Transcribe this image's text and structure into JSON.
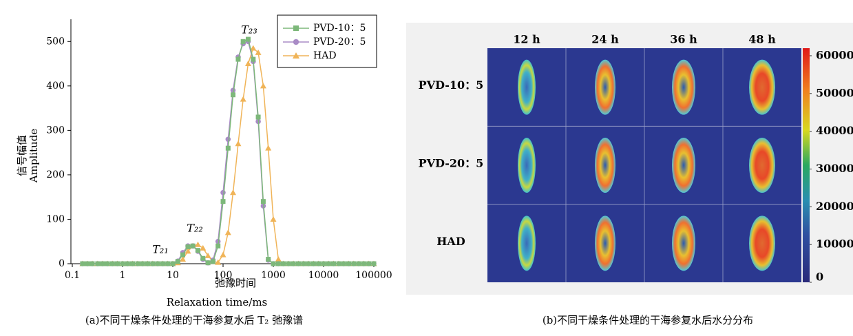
{
  "chart_data": [
    {
      "type": "line",
      "ylabel": "信号幅值",
      "ylabel_en": "Amplitude",
      "xlabel": "弛豫时间",
      "xlabel_en": "Relaxation time/ms",
      "caption": "(a)不同干燥条件处理的干海参复水后 T₂ 弛豫谱",
      "annotations": [
        "T₂₁",
        "T₂₂",
        "T₂₃"
      ],
      "xlog": true,
      "xlim": [
        0.1,
        100000
      ],
      "xticks": [
        0.1,
        1,
        10,
        100,
        1000,
        10000,
        100000
      ],
      "ylim": [
        0,
        550
      ],
      "yticks": [
        0,
        100,
        200,
        300,
        400,
        500
      ],
      "legend": "upper-right",
      "x": [
        0.16,
        0.2,
        0.25,
        0.32,
        0.4,
        0.5,
        0.63,
        0.79,
        1,
        1.26,
        1.58,
        2,
        2.51,
        3.16,
        3.98,
        5.01,
        6.31,
        7.94,
        10,
        12.6,
        15.8,
        20,
        25.1,
        31.6,
        39.8,
        50.1,
        63.1,
        79.4,
        100,
        126,
        158,
        200,
        251,
        316,
        398,
        501,
        631,
        794,
        1000,
        1260,
        1580,
        2000,
        2510,
        3160,
        3980,
        5010,
        6310,
        7940,
        10000,
        12600,
        15800,
        20000,
        25100,
        31600,
        39800,
        50100,
        63100,
        79400,
        100000
      ],
      "series": [
        {
          "name": "PVD-10：5",
          "color": "#7db87a",
          "marker": "square",
          "values": [
            0,
            0,
            0,
            0,
            0,
            0,
            0,
            0,
            0,
            0,
            0,
            0,
            0,
            0,
            0,
            0,
            0,
            0,
            0,
            5,
            20,
            38,
            40,
            30,
            12,
            2,
            5,
            40,
            140,
            260,
            380,
            460,
            500,
            505,
            460,
            330,
            140,
            10,
            0,
            0,
            0,
            0,
            0,
            0,
            0,
            0,
            0,
            0,
            0,
            0,
            0,
            0,
            0,
            0,
            0,
            0,
            0,
            0,
            0
          ]
        },
        {
          "name": "PVD-20：5",
          "color": "#a98bc6",
          "marker": "circle",
          "values": [
            0,
            0,
            0,
            0,
            0,
            0,
            0,
            0,
            0,
            0,
            0,
            0,
            0,
            0,
            0,
            0,
            0,
            0,
            0,
            6,
            25,
            40,
            40,
            28,
            10,
            2,
            8,
            50,
            160,
            280,
            390,
            465,
            495,
            500,
            455,
            320,
            130,
            8,
            0,
            0,
            0,
            0,
            0,
            0,
            0,
            0,
            0,
            0,
            0,
            0,
            0,
            0,
            0,
            0,
            0,
            0,
            0,
            0,
            0
          ]
        },
        {
          "name": "HAD",
          "color": "#f0b458",
          "marker": "triangle",
          "values": [
            0,
            0,
            0,
            0,
            0,
            0,
            0,
            0,
            0,
            0,
            0,
            0,
            0,
            0,
            0,
            0,
            0,
            0,
            0,
            2,
            10,
            28,
            40,
            43,
            35,
            18,
            5,
            3,
            20,
            70,
            160,
            270,
            370,
            450,
            485,
            475,
            400,
            260,
            100,
            10,
            0,
            0,
            0,
            0,
            0,
            0,
            0,
            0,
            0,
            0,
            0,
            0,
            0,
            0,
            0,
            0,
            0,
            0,
            0
          ]
        }
      ]
    },
    {
      "type": "image-grid",
      "caption": "(b)不同干燥条件处理的干海参复水后水分分布",
      "columns": [
        "12 h",
        "24 h",
        "36 h",
        "48 h"
      ],
      "rows": [
        "PVD-10：5",
        "PVD-20：5",
        "HAD"
      ],
      "clim": [
        0,
        62000
      ],
      "cticks": [
        0,
        10000,
        20000,
        30000,
        40000,
        50000,
        60000
      ]
    }
  ]
}
